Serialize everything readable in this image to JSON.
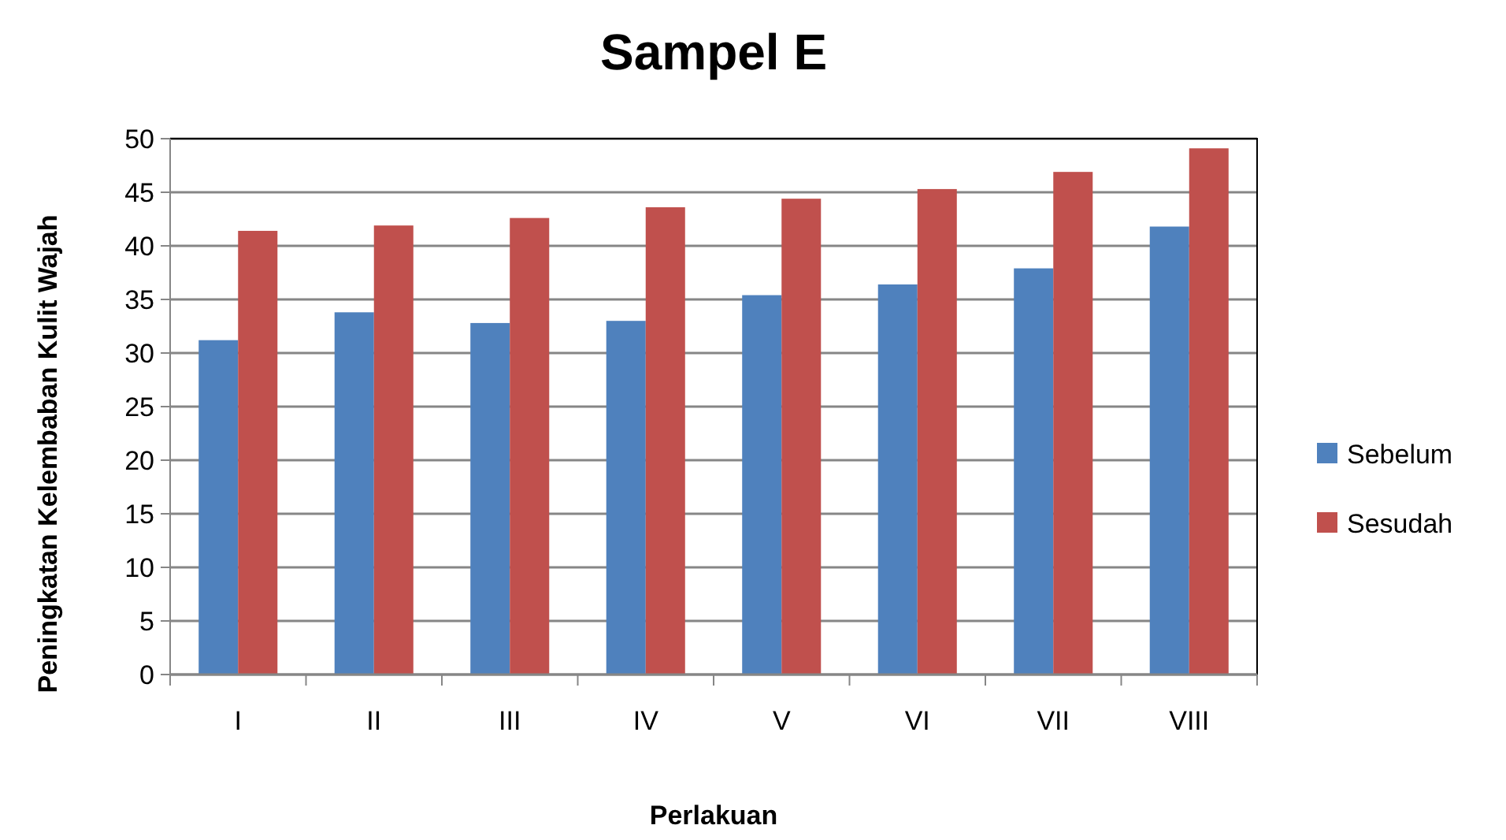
{
  "chart_data": {
    "type": "bar",
    "title": "Sampel E",
    "xlabel": "Perlakuan",
    "ylabel": "Peningkatan Kelembaban Kulit Wajah",
    "categories": [
      "I",
      "II",
      "III",
      "IV",
      "V",
      "VI",
      "VII",
      "VIII"
    ],
    "series": [
      {
        "name": "Sebelum",
        "color": "#4f81bd",
        "values": [
          31.2,
          33.8,
          32.8,
          33.0,
          35.4,
          36.4,
          37.9,
          41.8
        ]
      },
      {
        "name": "Sesudah",
        "color": "#c0504d",
        "values": [
          41.4,
          41.9,
          42.6,
          43.6,
          44.4,
          45.3,
          46.9,
          49.1
        ]
      }
    ],
    "ylim": [
      0,
      50
    ],
    "yticks": [
      0,
      5,
      10,
      15,
      20,
      25,
      30,
      35,
      40,
      45,
      50
    ],
    "grid": "y",
    "legend": "right"
  }
}
